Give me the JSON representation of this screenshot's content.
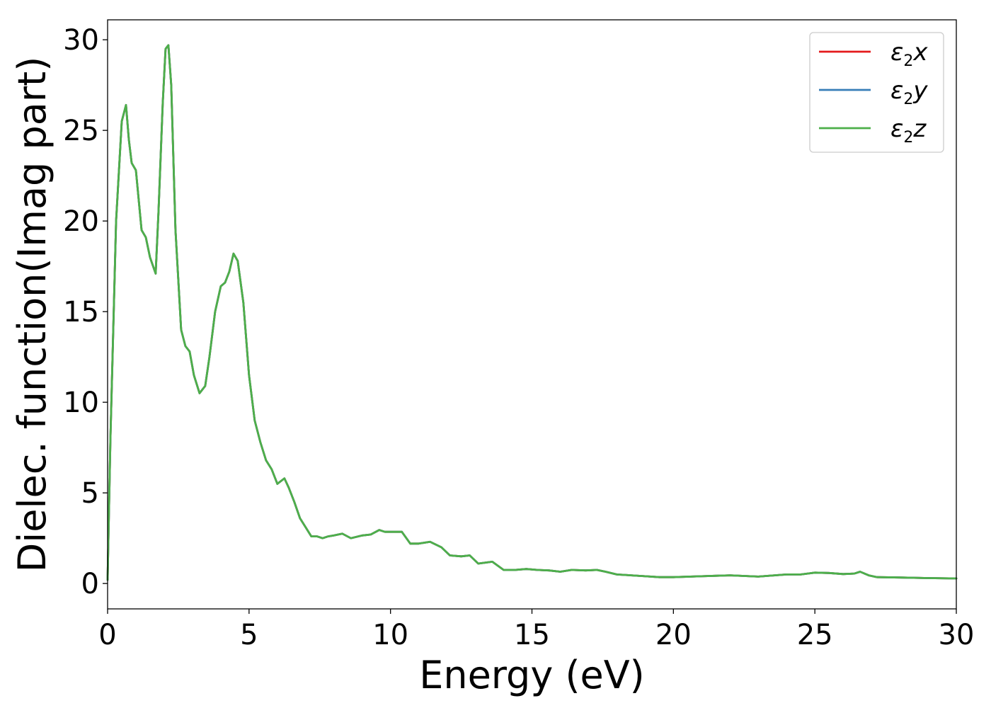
{
  "chart_data": {
    "type": "line",
    "xlabel": "Energy (eV)",
    "ylabel": "Dielec. function(Imag part)",
    "xlim": [
      0,
      30
    ],
    "ylim": [
      -1.4,
      31.1
    ],
    "xticks": [
      0,
      5,
      10,
      15,
      20,
      25,
      30
    ],
    "yticks": [
      0,
      5,
      10,
      15,
      20,
      25,
      30
    ],
    "grid": false,
    "legend_position": "top-right",
    "series": [
      {
        "name": "ε2x",
        "legend": {
          "base": "ε",
          "sub": "2",
          "tail": "x"
        },
        "color": "#e41a1c",
        "x": [
          0,
          0.1,
          0.3,
          0.5,
          0.65,
          0.75,
          0.85,
          1.0,
          1.2,
          1.35,
          1.5,
          1.7,
          1.8,
          1.95,
          2.05,
          2.15,
          2.25,
          2.4,
          2.6,
          2.75,
          2.9,
          3.05,
          3.25,
          3.45,
          3.6,
          3.8,
          4.0,
          4.15,
          4.3,
          4.45,
          4.6,
          4.8,
          5.0,
          5.2,
          5.4,
          5.6,
          5.8,
          6.0,
          6.25,
          6.4,
          6.6,
          6.8,
          7.0,
          7.2,
          7.4,
          7.6,
          7.8,
          8.0,
          8.3,
          8.6,
          9.0,
          9.3,
          9.6,
          9.8,
          10.1,
          10.4,
          10.7,
          11.0,
          11.4,
          11.8,
          12.1,
          12.5,
          12.8,
          13.1,
          13.6,
          14.0,
          14.4,
          14.8,
          15.2,
          15.6,
          16.0,
          16.4,
          16.9,
          17.3,
          17.6,
          18.0,
          18.5,
          19.0,
          19.5,
          20.0,
          21.0,
          22.0,
          23.0,
          24.0,
          24.5,
          25.0,
          25.5,
          26.0,
          26.4,
          26.6,
          26.9,
          27.2,
          28.0,
          29.0,
          30.0
        ],
        "y": [
          0.2,
          8.0,
          20.0,
          25.5,
          26.4,
          24.5,
          23.2,
          22.8,
          19.5,
          19.1,
          18.0,
          17.1,
          20.5,
          26.5,
          29.5,
          29.7,
          27.5,
          19.5,
          14.0,
          13.1,
          12.8,
          11.5,
          10.5,
          10.9,
          12.5,
          15.0,
          16.4,
          16.6,
          17.2,
          18.2,
          17.8,
          15.5,
          11.5,
          9.0,
          7.8,
          6.8,
          6.3,
          5.5,
          5.8,
          5.3,
          4.5,
          3.6,
          3.1,
          2.6,
          2.6,
          2.5,
          2.6,
          2.65,
          2.75,
          2.5,
          2.65,
          2.7,
          2.95,
          2.85,
          2.85,
          2.85,
          2.2,
          2.2,
          2.3,
          2.0,
          1.55,
          1.5,
          1.55,
          1.1,
          1.2,
          0.75,
          0.75,
          0.8,
          0.75,
          0.72,
          0.65,
          0.75,
          0.72,
          0.75,
          0.65,
          0.5,
          0.45,
          0.4,
          0.35,
          0.35,
          0.4,
          0.45,
          0.38,
          0.5,
          0.5,
          0.6,
          0.58,
          0.52,
          0.55,
          0.65,
          0.45,
          0.35,
          0.33,
          0.3,
          0.28
        ]
      },
      {
        "name": "ε2y",
        "legend": {
          "base": "ε",
          "sub": "2",
          "tail": "y"
        },
        "color": "#377eb8",
        "x": [
          0,
          0.1,
          0.3,
          0.5,
          0.65,
          0.75,
          0.85,
          1.0,
          1.2,
          1.35,
          1.5,
          1.7,
          1.8,
          1.95,
          2.05,
          2.15,
          2.25,
          2.4,
          2.6,
          2.75,
          2.9,
          3.05,
          3.25,
          3.45,
          3.6,
          3.8,
          4.0,
          4.15,
          4.3,
          4.45,
          4.6,
          4.8,
          5.0,
          5.2,
          5.4,
          5.6,
          5.8,
          6.0,
          6.25,
          6.4,
          6.6,
          6.8,
          7.0,
          7.2,
          7.4,
          7.6,
          7.8,
          8.0,
          8.3,
          8.6,
          9.0,
          9.3,
          9.6,
          9.8,
          10.1,
          10.4,
          10.7,
          11.0,
          11.4,
          11.8,
          12.1,
          12.5,
          12.8,
          13.1,
          13.6,
          14.0,
          14.4,
          14.8,
          15.2,
          15.6,
          16.0,
          16.4,
          16.9,
          17.3,
          17.6,
          18.0,
          18.5,
          19.0,
          19.5,
          20.0,
          21.0,
          22.0,
          23.0,
          24.0,
          24.5,
          25.0,
          25.5,
          26.0,
          26.4,
          26.6,
          26.9,
          27.2,
          28.0,
          29.0,
          30.0
        ],
        "y": [
          0.2,
          8.0,
          20.0,
          25.5,
          26.4,
          24.5,
          23.2,
          22.8,
          19.5,
          19.1,
          18.0,
          17.1,
          20.5,
          26.5,
          29.5,
          29.7,
          27.5,
          19.5,
          14.0,
          13.1,
          12.8,
          11.5,
          10.5,
          10.9,
          12.5,
          15.0,
          16.4,
          16.6,
          17.2,
          18.2,
          17.8,
          15.5,
          11.5,
          9.0,
          7.8,
          6.8,
          6.3,
          5.5,
          5.8,
          5.3,
          4.5,
          3.6,
          3.1,
          2.6,
          2.6,
          2.5,
          2.6,
          2.65,
          2.75,
          2.5,
          2.65,
          2.7,
          2.95,
          2.85,
          2.85,
          2.85,
          2.2,
          2.2,
          2.3,
          2.0,
          1.55,
          1.5,
          1.55,
          1.1,
          1.2,
          0.75,
          0.75,
          0.8,
          0.75,
          0.72,
          0.65,
          0.75,
          0.72,
          0.75,
          0.65,
          0.5,
          0.45,
          0.4,
          0.35,
          0.35,
          0.4,
          0.45,
          0.38,
          0.5,
          0.5,
          0.6,
          0.58,
          0.52,
          0.55,
          0.65,
          0.45,
          0.35,
          0.33,
          0.3,
          0.28
        ]
      },
      {
        "name": "ε2z",
        "legend": {
          "base": "ε",
          "sub": "2",
          "tail": "z"
        },
        "color": "#4daf4a",
        "x": [
          0,
          0.1,
          0.3,
          0.5,
          0.65,
          0.75,
          0.85,
          1.0,
          1.2,
          1.35,
          1.5,
          1.7,
          1.8,
          1.95,
          2.05,
          2.15,
          2.25,
          2.4,
          2.6,
          2.75,
          2.9,
          3.05,
          3.25,
          3.45,
          3.6,
          3.8,
          4.0,
          4.15,
          4.3,
          4.45,
          4.6,
          4.8,
          5.0,
          5.2,
          5.4,
          5.6,
          5.8,
          6.0,
          6.25,
          6.4,
          6.6,
          6.8,
          7.0,
          7.2,
          7.4,
          7.6,
          7.8,
          8.0,
          8.3,
          8.6,
          9.0,
          9.3,
          9.6,
          9.8,
          10.1,
          10.4,
          10.7,
          11.0,
          11.4,
          11.8,
          12.1,
          12.5,
          12.8,
          13.1,
          13.6,
          14.0,
          14.4,
          14.8,
          15.2,
          15.6,
          16.0,
          16.4,
          16.9,
          17.3,
          17.6,
          18.0,
          18.5,
          19.0,
          19.5,
          20.0,
          21.0,
          22.0,
          23.0,
          24.0,
          24.5,
          25.0,
          25.5,
          26.0,
          26.4,
          26.6,
          26.9,
          27.2,
          28.0,
          29.0,
          30.0
        ],
        "y": [
          0.2,
          8.0,
          20.0,
          25.5,
          26.4,
          24.5,
          23.2,
          22.8,
          19.5,
          19.1,
          18.0,
          17.1,
          20.5,
          26.5,
          29.5,
          29.7,
          27.5,
          19.5,
          14.0,
          13.1,
          12.8,
          11.5,
          10.5,
          10.9,
          12.5,
          15.0,
          16.4,
          16.6,
          17.2,
          18.2,
          17.8,
          15.5,
          11.5,
          9.0,
          7.8,
          6.8,
          6.3,
          5.5,
          5.8,
          5.3,
          4.5,
          3.6,
          3.1,
          2.6,
          2.6,
          2.5,
          2.6,
          2.65,
          2.75,
          2.5,
          2.65,
          2.7,
          2.95,
          2.85,
          2.85,
          2.85,
          2.2,
          2.2,
          2.3,
          2.0,
          1.55,
          1.5,
          1.55,
          1.1,
          1.2,
          0.75,
          0.75,
          0.8,
          0.75,
          0.72,
          0.65,
          0.75,
          0.72,
          0.75,
          0.65,
          0.5,
          0.45,
          0.4,
          0.35,
          0.35,
          0.4,
          0.45,
          0.38,
          0.5,
          0.5,
          0.6,
          0.58,
          0.52,
          0.55,
          0.65,
          0.45,
          0.35,
          0.33,
          0.3,
          0.28
        ]
      }
    ]
  }
}
